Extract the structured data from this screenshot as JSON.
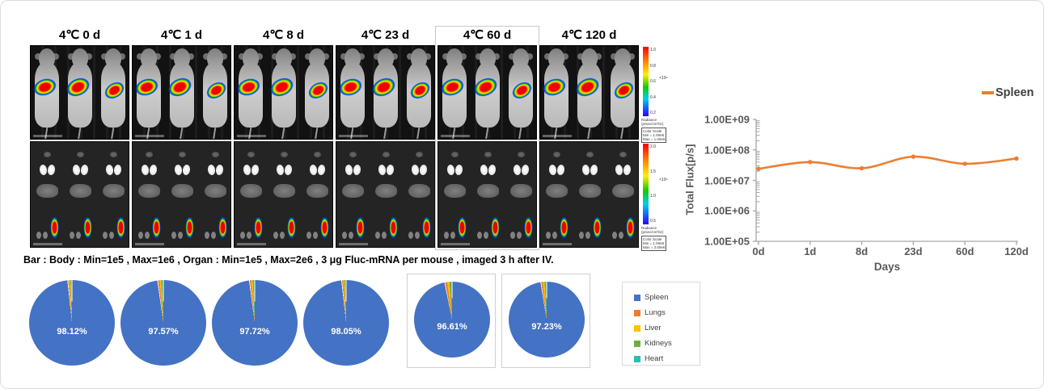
{
  "figure": {
    "caption": "Bar : Body : Min=1e5 , Max=1e6 , Organ : Min=1e5 , Max=2e6 , 3 μg Fluc-mRNA per mouse , imaged 3 h after IV.",
    "timepoints": [
      {
        "header": "4℃ 0 d",
        "pie_label": "98.12%",
        "spleen_pct": 98.12,
        "boxed": false,
        "outlined": false
      },
      {
        "header": "4℃ 1 d",
        "pie_label": "97.57%",
        "spleen_pct": 97.57,
        "boxed": false,
        "outlined": false
      },
      {
        "header": "4℃ 8 d",
        "pie_label": "97.72%",
        "spleen_pct": 97.72,
        "boxed": false,
        "outlined": false
      },
      {
        "header": "4℃ 23 d",
        "pie_label": "98.05%",
        "spleen_pct": 98.05,
        "boxed": false,
        "outlined": false
      },
      {
        "header": "4℃ 60 d",
        "pie_label": "96.61%",
        "spleen_pct": 96.61,
        "boxed": true,
        "outlined": true
      },
      {
        "header": "4℃ 120 d",
        "pie_label": "97.23%",
        "spleen_pct": 97.23,
        "boxed": true,
        "outlined": false
      }
    ],
    "colorbars": {
      "body": {
        "ticks": [
          "1.0",
          "0.8",
          "0.6",
          "0.4",
          "0.2"
        ],
        "multiplier": "×10⁶",
        "unit_lines": [
          "Radiance",
          "(p/sec/cm²/sr)"
        ],
        "scale_lines": [
          "Color Scale",
          "Min = 1.00e5",
          "Max = 1.00e6"
        ]
      },
      "organ": {
        "ticks": [
          "2.0",
          "1.5",
          "1.0",
          "0.5"
        ],
        "multiplier": "×10⁶",
        "unit_lines": [
          "Radiance",
          "(p/sec/cm²/sr)"
        ],
        "scale_lines": [
          "Color Scale",
          "Min = 1.00e5",
          "Max = 2.00e6"
        ]
      }
    },
    "pie_legend": [
      {
        "label": "Spleen",
        "color": "#4472C4"
      },
      {
        "label": "Lungs",
        "color": "#ED7D31"
      },
      {
        "label": "Liver",
        "color": "#FFC000"
      },
      {
        "label": "Kidneys",
        "color": "#70AD47"
      },
      {
        "label": "Heart",
        "color": "#29BFB2"
      }
    ],
    "pie_colors": {
      "spleen": "#4472C4",
      "lungs": "#ED7D31",
      "liver": "#FFC000",
      "kidneys": "#70AD47",
      "heart": "#29BFB2"
    }
  },
  "chart_data": [
    {
      "type": "line",
      "title": "",
      "x": [
        "0d",
        "1d",
        "8d",
        "23d",
        "60d",
        "120d"
      ],
      "series": [
        {
          "name": "Spleen",
          "color": "#ED7D31",
          "values": [
            24000000,
            40000000,
            25000000,
            60000000,
            35000000,
            52000000
          ]
        }
      ],
      "xlabel": "Days",
      "ylabel": "Total Flux[p/s]",
      "yscale": "log",
      "ylim": [
        100000,
        1000000000
      ],
      "ytick_labels": [
        "1.00E+09",
        "1.00E+08",
        "1.00E+07",
        "1.00E+06",
        "1.00E+05"
      ],
      "grid": false,
      "legend_position": "top-right",
      "marker": "circle"
    },
    {
      "type": "pie",
      "note": "six pies, one per timepoint; only the Spleen share is labeled in the figure",
      "pies": [
        {
          "timepoint": "4℃ 0 d",
          "spleen_pct": 98.12
        },
        {
          "timepoint": "4℃ 1 d",
          "spleen_pct": 97.57
        },
        {
          "timepoint": "4℃ 8 d",
          "spleen_pct": 97.72
        },
        {
          "timepoint": "4℃ 23 d",
          "spleen_pct": 98.05
        },
        {
          "timepoint": "4℃ 60 d",
          "spleen_pct": 96.61
        },
        {
          "timepoint": "4℃ 120 d",
          "spleen_pct": 97.23
        }
      ],
      "legend_entries": [
        "Spleen",
        "Lungs",
        "Liver",
        "Kidneys",
        "Heart"
      ]
    }
  ]
}
